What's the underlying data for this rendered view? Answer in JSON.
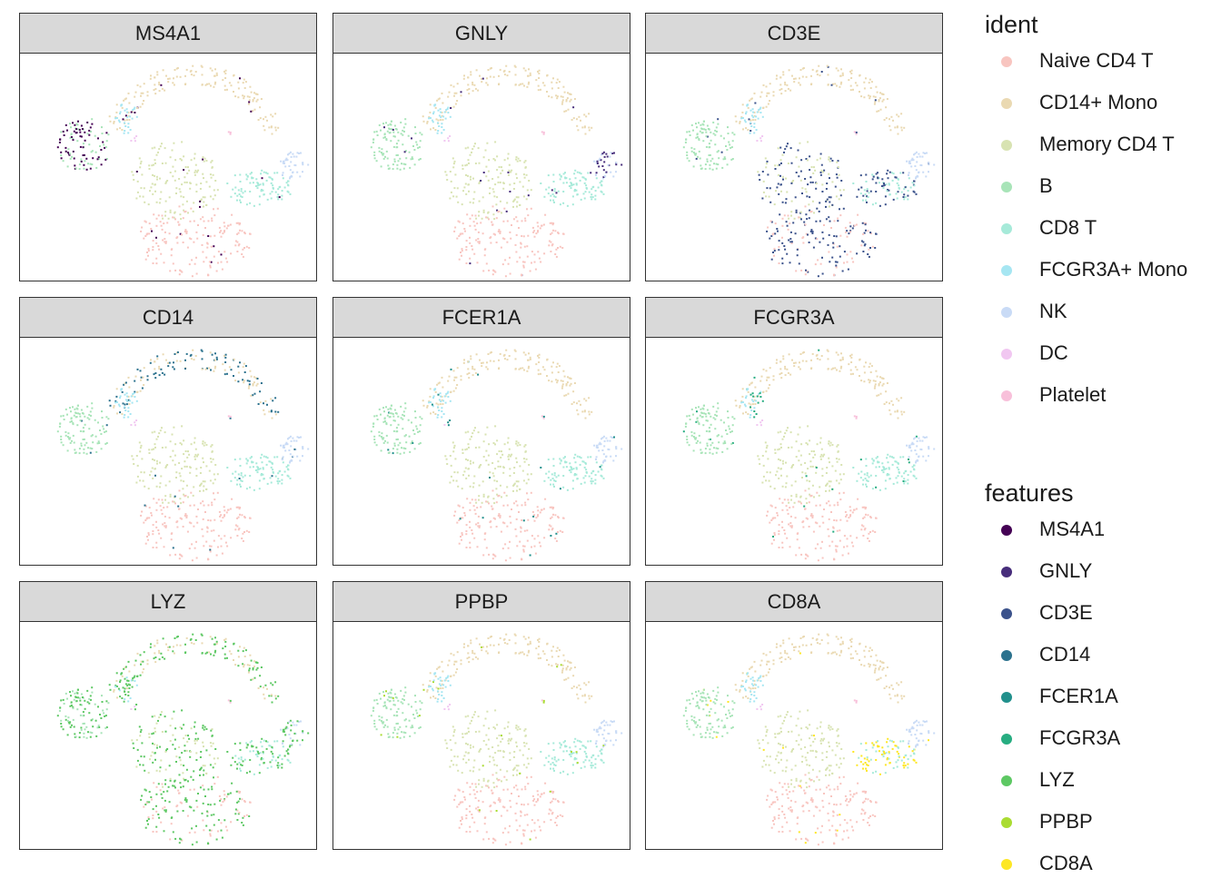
{
  "chart_data": {
    "type": "scatter",
    "panels": [
      {
        "feature": "MS4A1",
        "highlight_cluster": "B"
      },
      {
        "feature": "GNLY",
        "highlight_cluster": "NK"
      },
      {
        "feature": "CD3E",
        "highlight_cluster": "T"
      },
      {
        "feature": "CD14",
        "highlight_cluster": "CD14+ Mono"
      },
      {
        "feature": "FCER1A",
        "highlight_cluster": "DC"
      },
      {
        "feature": "FCGR3A",
        "highlight_cluster": "FCGR3A+ Mono"
      },
      {
        "feature": "LYZ",
        "highlight_cluster": "all"
      },
      {
        "feature": "PPBP",
        "highlight_cluster": "Platelet"
      },
      {
        "feature": "CD8A",
        "highlight_cluster": "CD8 T"
      }
    ],
    "ident": {
      "title": "ident",
      "items": [
        {
          "label": "Naive CD4 T",
          "color": "#F8C5C0"
        },
        {
          "label": "CD14+ Mono",
          "color": "#EAD9B2"
        },
        {
          "label": "Memory CD4 T",
          "color": "#D8E3B2"
        },
        {
          "label": "B",
          "color": "#A8E4B8"
        },
        {
          "label": "CD8 T",
          "color": "#A6EAD9"
        },
        {
          "label": "FCGR3A+ Mono",
          "color": "#A6E6F2"
        },
        {
          "label": "NK",
          "color": "#C9DBF6"
        },
        {
          "label": "DC",
          "color": "#F1C7F1"
        },
        {
          "label": "Platelet",
          "color": "#F8C0DA"
        }
      ]
    },
    "features": {
      "title": "features",
      "items": [
        {
          "label": "MS4A1",
          "color": "#440154"
        },
        {
          "label": "GNLY",
          "color": "#472D7B"
        },
        {
          "label": "CD3E",
          "color": "#3B528B"
        },
        {
          "label": "CD14",
          "color": "#2C728E"
        },
        {
          "label": "FCER1A",
          "color": "#21908C"
        },
        {
          "label": "FCGR3A",
          "color": "#27AD81"
        },
        {
          "label": "LYZ",
          "color": "#5DC863"
        },
        {
          "label": "PPBP",
          "color": "#AADC32"
        },
        {
          "label": "CD8A",
          "color": "#FDE725"
        }
      ]
    },
    "legend_position": "right",
    "grid": false
  }
}
